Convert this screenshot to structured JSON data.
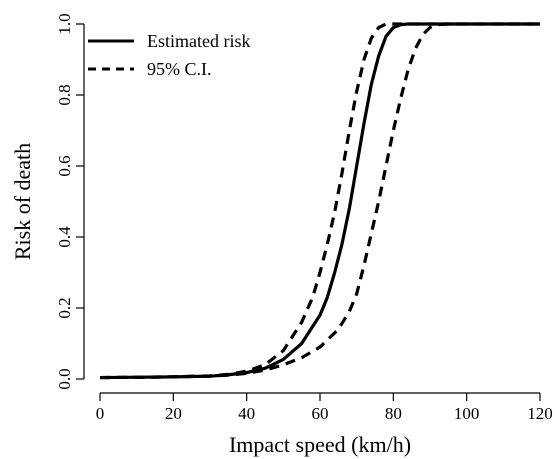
{
  "chart_data": {
    "type": "line",
    "xlabel": "Impact speed (km/h)",
    "ylabel": "Risk of death",
    "xlim": [
      0,
      120
    ],
    "ylim": [
      0,
      1
    ],
    "xticks": [
      0,
      20,
      40,
      60,
      80,
      100,
      120
    ],
    "yticks": [
      0.0,
      0.2,
      0.4,
      0.6,
      0.8,
      1.0
    ],
    "ytick_labels": [
      "0.0",
      "0.2",
      "0.4",
      "0.6",
      "0.8",
      "1.0"
    ],
    "grid": false,
    "legend_position": "top-left",
    "series": [
      {
        "name": "Estimated risk",
        "style": "solid",
        "x": [
          0,
          10,
          20,
          30,
          35,
          40,
          45,
          50,
          55,
          60,
          62,
          64,
          66,
          68,
          70,
          72,
          74,
          76,
          78,
          80,
          82,
          84,
          86,
          90,
          100,
          110,
          120
        ],
        "y": [
          0.004,
          0.005,
          0.006,
          0.008,
          0.012,
          0.018,
          0.03,
          0.055,
          0.1,
          0.18,
          0.23,
          0.3,
          0.38,
          0.48,
          0.6,
          0.72,
          0.83,
          0.91,
          0.965,
          0.99,
          0.998,
          1.0,
          1.0,
          1.0,
          1.0,
          1.0,
          1.0
        ]
      },
      {
        "name": "95% C.I.",
        "style": "dashed",
        "x": [
          0,
          10,
          20,
          30,
          35,
          40,
          45,
          50,
          55,
          58,
          60,
          62,
          64,
          66,
          68,
          70,
          72,
          74,
          76,
          78,
          80,
          90,
          100,
          110,
          120
        ],
        "y": [
          0.004,
          0.005,
          0.006,
          0.009,
          0.013,
          0.022,
          0.04,
          0.08,
          0.16,
          0.23,
          0.3,
          0.38,
          0.47,
          0.58,
          0.7,
          0.81,
          0.9,
          0.96,
          0.99,
          1.0,
          1.0,
          1.0,
          1.0,
          1.0,
          1.0
        ]
      },
      {
        "name": "",
        "style": "dashed",
        "x": [
          0,
          10,
          20,
          30,
          35,
          40,
          45,
          50,
          55,
          60,
          65,
          68,
          70,
          72,
          74,
          76,
          78,
          80,
          82,
          84,
          86,
          88,
          90,
          92,
          95,
          100,
          110,
          120
        ],
        "y": [
          0.004,
          0.005,
          0.006,
          0.008,
          0.011,
          0.016,
          0.025,
          0.04,
          0.06,
          0.09,
          0.14,
          0.19,
          0.24,
          0.32,
          0.41,
          0.5,
          0.6,
          0.7,
          0.79,
          0.87,
          0.93,
          0.97,
          0.99,
          0.998,
          1.0,
          1.0,
          1.0,
          1.0
        ]
      }
    ]
  }
}
